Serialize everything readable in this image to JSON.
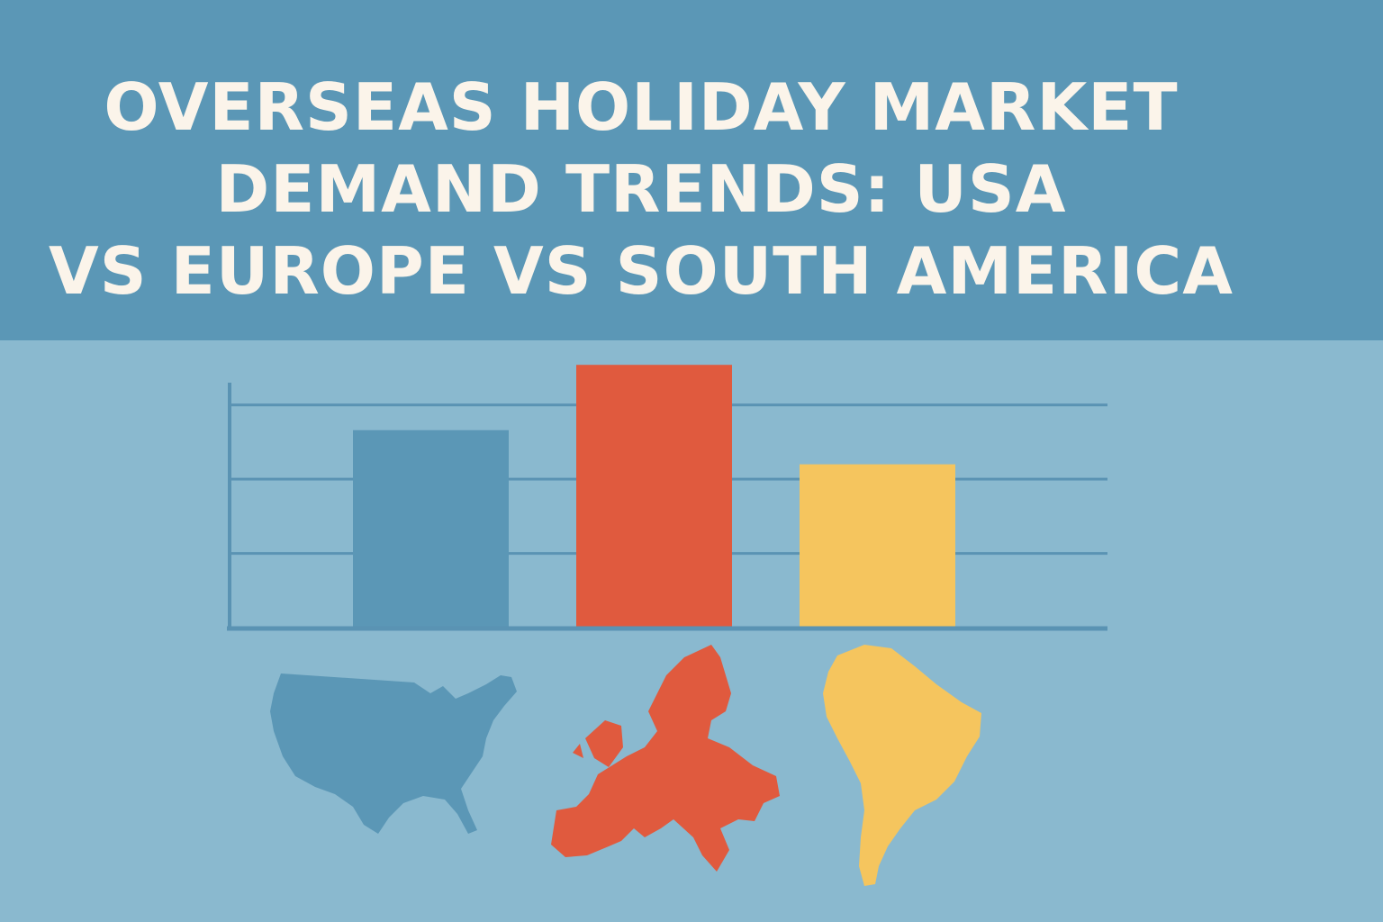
{
  "title_lines": [
    "OVERSEAS HOLIDAY MARKET",
    "DEMAND TRENDS: USA",
    "VS EUROPE VS SOUTH AMERICA"
  ],
  "colors": {
    "header": "#5b97b6",
    "background": "#8ab9cf",
    "usa": "#5b97b6",
    "europe": "#e05a3e",
    "south_america": "#f5c55e",
    "axis": "#5a93b3"
  },
  "chart_data": {
    "type": "bar",
    "title": "OVERSEAS HOLIDAY MARKET DEMAND TRENDS: USA VS EUROPE VS SOUTH AMERICA",
    "categories": [
      "USA",
      "Europe",
      "South America"
    ],
    "category_icons": [
      "usa-map-icon",
      "europe-map-icon",
      "south-america-map-icon"
    ],
    "values": [
      2.66,
      3.54,
      2.2
    ],
    "xlabel": "",
    "ylabel": "",
    "ylim": [
      0,
      3.3
    ],
    "gridlines": [
      1,
      2,
      3
    ],
    "grid": true,
    "legend": "none"
  }
}
